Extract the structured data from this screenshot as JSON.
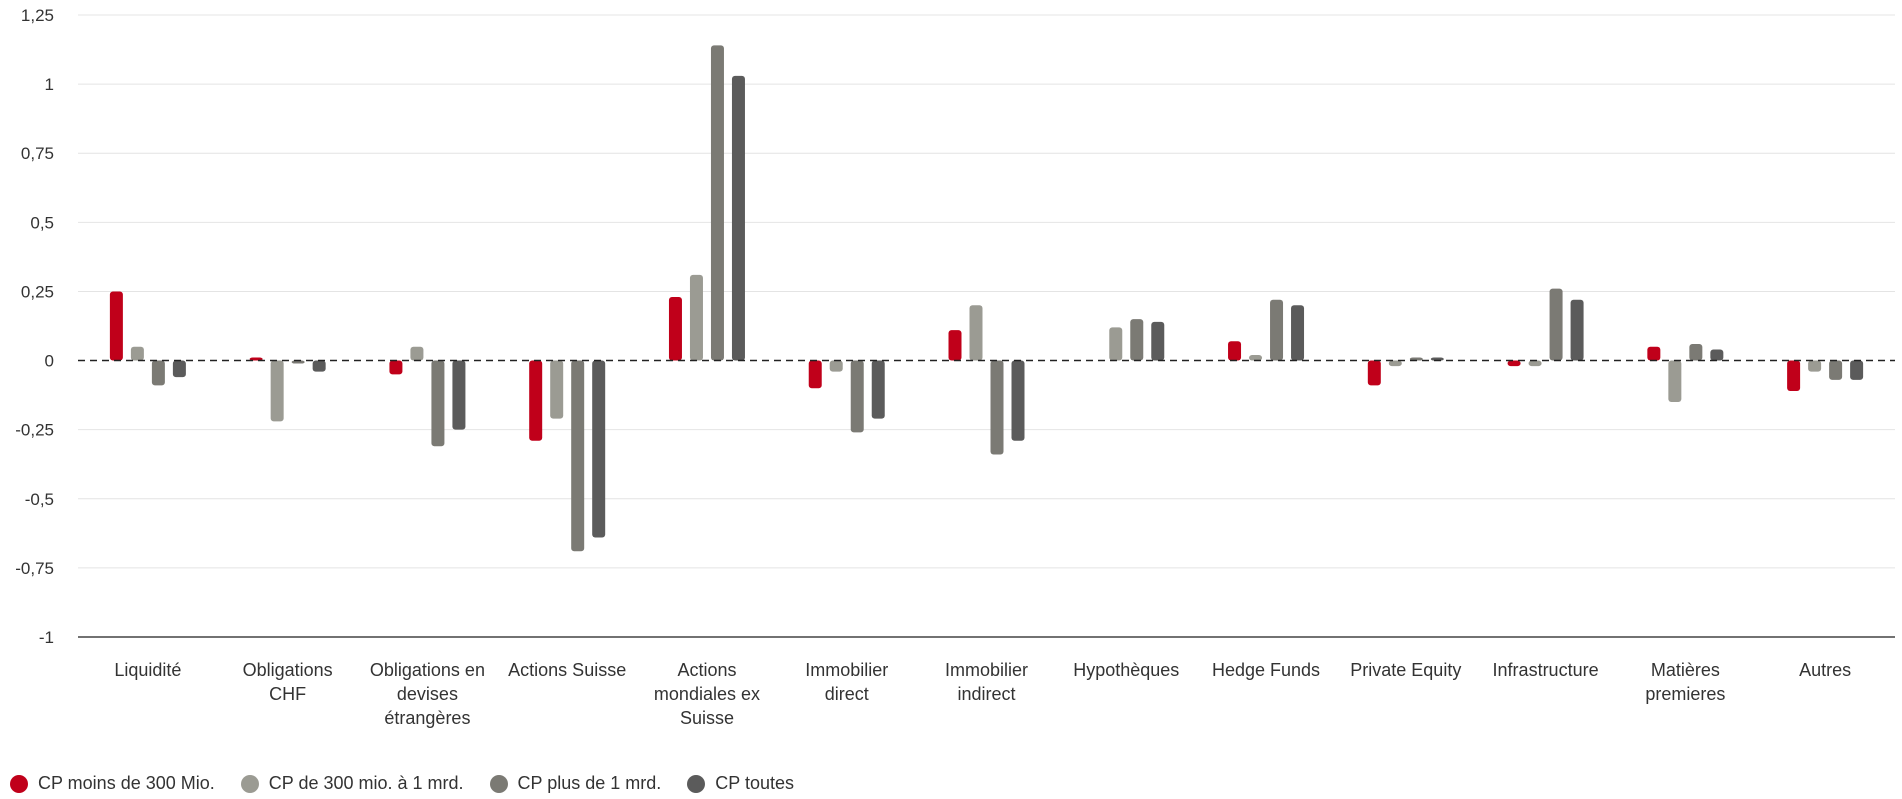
{
  "chart_data": {
    "type": "bar",
    "title": "",
    "xlabel": "",
    "ylabel": "",
    "ylim": [
      -1,
      1.25
    ],
    "yticks": [
      -1,
      -0.75,
      -0.5,
      -0.25,
      0,
      0.25,
      0.5,
      0.75,
      1,
      1.25
    ],
    "ytick_labels": [
      "-1",
      "-0,75",
      "-0,5",
      "-0,25",
      "0",
      "0,25",
      "0,5",
      "0,75",
      "1",
      "1,25"
    ],
    "grid": true,
    "zero_line": "dashed",
    "legend_position": "bottom-left",
    "categories": [
      "Liquidité",
      "Obligations CHF",
      "Obligations en devises étrangères",
      "Actions Suisse",
      "Actions mondiales ex Suisse",
      "Immobilier direct",
      "Immobilier indirect",
      "Hypothèques",
      "Hedge Funds",
      "Private Equity",
      "Infrastructure",
      "Matières premieres",
      "Autres"
    ],
    "category_label_lines": [
      [
        "Liquidité"
      ],
      [
        "Obligations",
        "CHF"
      ],
      [
        "Obligations en",
        "devises",
        "étrangères"
      ],
      [
        "Actions Suisse"
      ],
      [
        "Actions",
        "mondiales ex",
        "Suisse"
      ],
      [
        "Immobilier",
        "direct"
      ],
      [
        "Immobilier",
        "indirect"
      ],
      [
        "Hypothèques"
      ],
      [
        "Hedge Funds"
      ],
      [
        "Private Equity"
      ],
      [
        "Infrastructure"
      ],
      [
        "Matières",
        "premieres"
      ],
      [
        "Autres"
      ]
    ],
    "series": [
      {
        "name": "CP moins de 300 Mio.",
        "color": "#c0001a",
        "values": [
          0.25,
          0.01,
          -0.05,
          -0.29,
          0.23,
          -0.1,
          0.11,
          0,
          0.07,
          -0.09,
          -0.02,
          0.05,
          -0.11
        ]
      },
      {
        "name": "CP de 300 mio. à 1 mrd.",
        "color": "#9b9b93",
        "values": [
          0.05,
          -0.22,
          0.05,
          -0.21,
          0.31,
          -0.04,
          0.2,
          0.12,
          0.02,
          -0.02,
          -0.02,
          -0.15,
          -0.04
        ]
      },
      {
        "name": "CP plus de 1 mrd.",
        "color": "#7b7a74",
        "values": [
          -0.09,
          -0.01,
          -0.31,
          -0.69,
          1.14,
          -0.26,
          -0.34,
          0.15,
          0.22,
          0.01,
          0.26,
          0.06,
          -0.07
        ]
      },
      {
        "name": "CP toutes",
        "color": "#5b5b5b",
        "values": [
          -0.06,
          -0.04,
          -0.25,
          -0.64,
          1.03,
          -0.21,
          -0.29,
          0.14,
          0.2,
          0.01,
          0.22,
          0.04,
          -0.07
        ]
      }
    ]
  }
}
